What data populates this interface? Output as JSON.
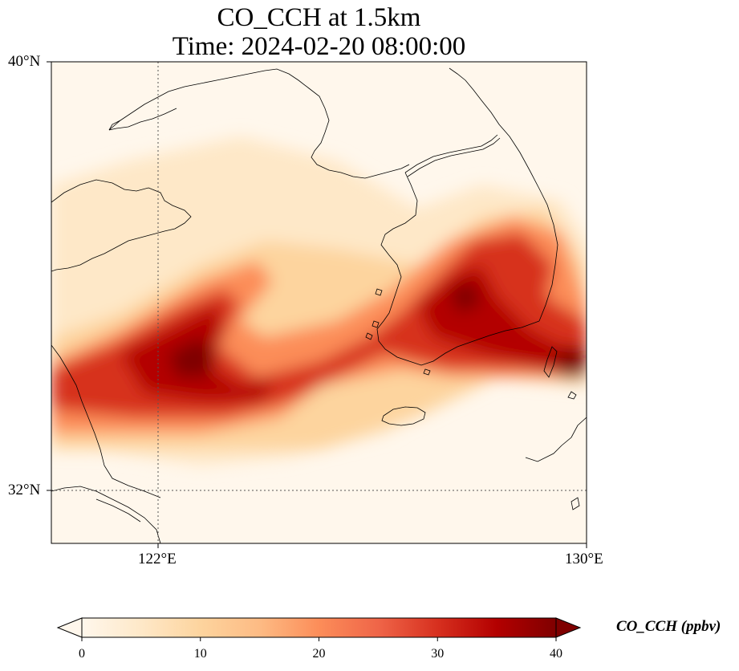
{
  "title": {
    "line1": "CO_CCH at 1.5km",
    "line2": "Time: 2024-02-20 08:00:00"
  },
  "map": {
    "extent": {
      "lon": [
        120,
        130
      ],
      "lat": [
        31,
        40
      ]
    },
    "gridlines": {
      "lon": [
        122
      ],
      "lat": [
        32
      ]
    },
    "lat_labels": [
      "40°N",
      "32°N"
    ],
    "lon_labels": [
      "122°E",
      "130°E"
    ]
  },
  "colorbar": {
    "label": "CO_CCH (ppbv)",
    "ticks": [
      "0",
      "10",
      "20",
      "30",
      "40"
    ],
    "range": [
      0,
      40
    ],
    "colormap": "OrRd",
    "extend": "both",
    "colors": [
      "#fff7ec",
      "#fee8c8",
      "#fdd49e",
      "#fdbb84",
      "#fc8d59",
      "#ef6548",
      "#d7301f",
      "#b30000",
      "#7f0000"
    ]
  },
  "features": [
    "coastlines",
    "jeju-island",
    "korean-peninsula",
    "shandong-peninsula",
    "yangtze-estuary",
    "nk-sk-border"
  ]
}
